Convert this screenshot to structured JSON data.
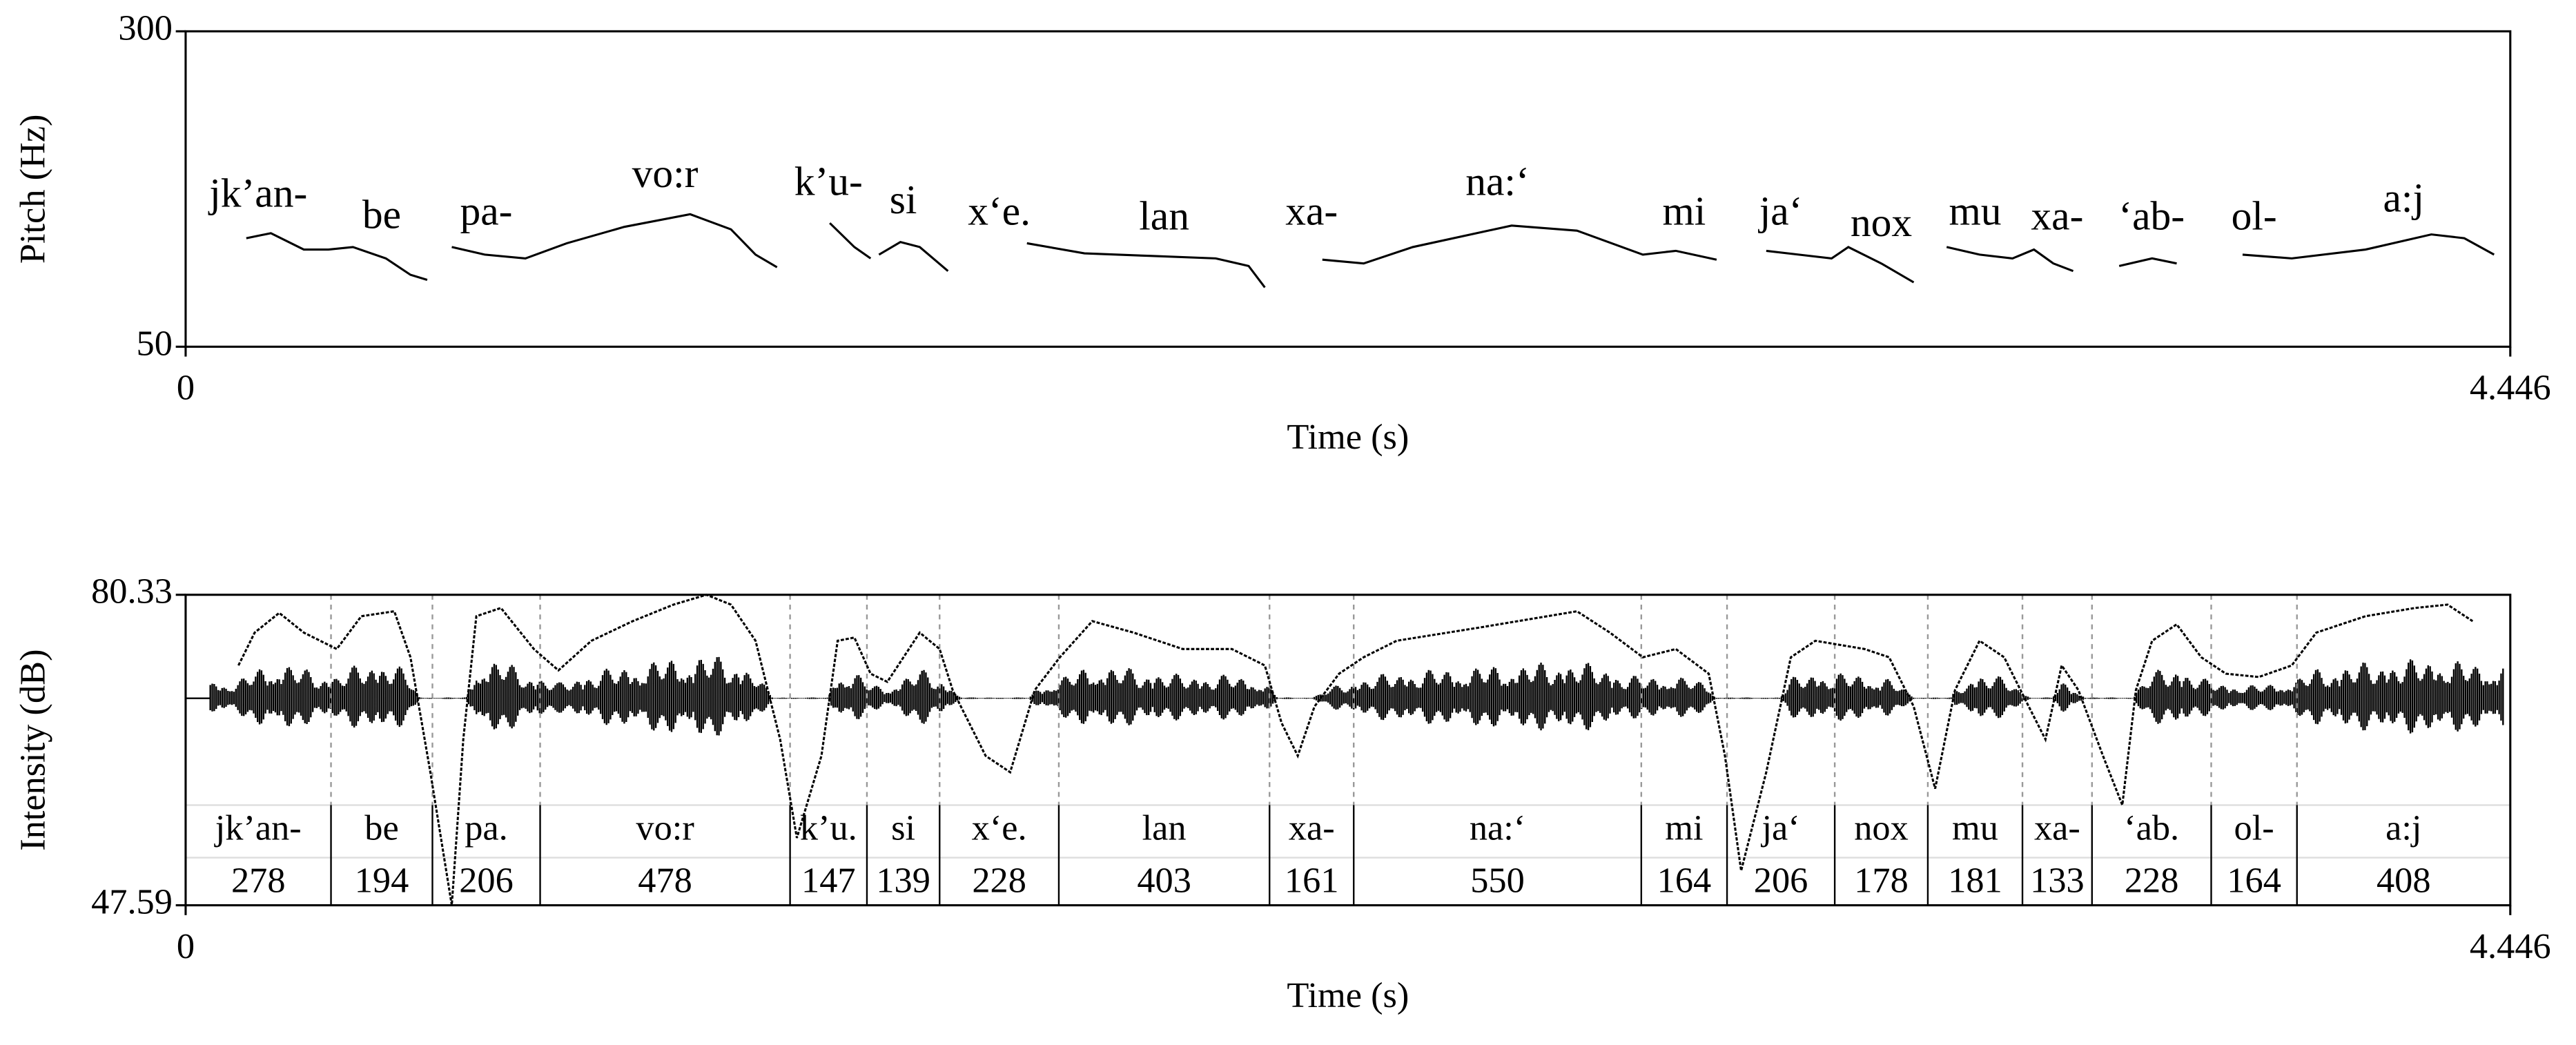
{
  "chart_data": [
    {
      "type": "line",
      "y_label": "Pitch (Hz)",
      "x_label": "Time (s)",
      "xlim": [
        0,
        4.446
      ],
      "xticks": [
        0,
        4.446
      ],
      "ylim": [
        50,
        300
      ],
      "yticks": [
        50,
        300
      ],
      "annotations": [
        "jk’an-",
        "be",
        "pa-",
        "vo:r",
        "k’u-",
        "si",
        "x‘e.",
        "lan",
        "xa-",
        "na:‘",
        "mi",
        "ja‘",
        "nox",
        "mu",
        "xa-",
        "‘ab-",
        "ol-",
        "a:j"
      ],
      "series": [
        {
          "color": "#000000",
          "x": [
            0.116,
            0.163,
            0.226,
            0.273,
            0.32,
            0.383,
            0.43,
            0.462,
            null,
            0.509,
            0.572,
            0.65,
            0.729,
            0.839,
            0.965,
            1.043,
            1.09,
            1.131,
            null,
            1.232,
            1.279,
            1.31,
            null,
            1.326,
            1.367,
            1.404,
            1.458,
            null,
            1.609,
            1.719,
            1.844,
            1.97,
            2.033,
            2.064,
            null,
            2.174,
            2.253,
            2.347,
            2.536,
            2.661,
            2.787,
            2.85,
            2.928,
            null,
            3.023,
            3.085,
            3.148,
            3.18,
            3.243,
            3.305,
            null,
            3.368,
            3.431,
            3.494,
            3.535,
            3.572,
            3.61,
            null,
            3.698,
            3.761,
            3.808,
            null,
            3.934,
            4.028,
            4.169,
            4.295,
            4.358,
            4.415
          ],
          "values": [
            136,
            140,
            127,
            127,
            129,
            120,
            107,
            103,
            null,
            129,
            123,
            120,
            132,
            145,
            155,
            143,
            123,
            113,
            null,
            148,
            129,
            120,
            null,
            123,
            133,
            129,
            110,
            null,
            132,
            124,
            122,
            120,
            114,
            97,
            null,
            119,
            116,
            129,
            146,
            142,
            123,
            126,
            119,
            null,
            126,
            123,
            120,
            129,
            116,
            101,
            null,
            129,
            123,
            120,
            127,
            116,
            110,
            null,
            114,
            120,
            116,
            null,
            123,
            120,
            127,
            139,
            136,
            123
          ]
        }
      ]
    },
    {
      "type": "line",
      "y_label": "Intensity (dB)",
      "x_label": "Time (s)",
      "xlim": [
        0,
        4.446
      ],
      "xticks": [
        0,
        4.446
      ],
      "ylim": [
        47.59,
        80.33
      ],
      "yticks": [
        47.59,
        80.33
      ],
      "series": [
        {
          "color": "#000000",
          "x": [
            0.101,
            0.132,
            0.179,
            0.226,
            0.289,
            0.336,
            0.399,
            0.43,
            0.468,
            0.509,
            0.531,
            0.556,
            0.603,
            0.666,
            0.713,
            0.776,
            0.855,
            0.933,
            0.996,
            1.043,
            1.09,
            1.137,
            1.169,
            1.216,
            1.247,
            1.279,
            1.31,
            1.342,
            1.404,
            1.442,
            1.467,
            1.53,
            1.577,
            1.624,
            1.672,
            1.734,
            1.813,
            1.907,
            2.001,
            2.064,
            2.096,
            2.127,
            2.159,
            2.206,
            2.253,
            2.316,
            2.473,
            2.661,
            2.724,
            2.787,
            2.85,
            2.913,
            2.944,
            2.975,
            3.023,
            3.07,
            3.117,
            3.211,
            3.258,
            3.305,
            3.346,
            3.384,
            3.431,
            3.478,
            3.525,
            3.557,
            3.588,
            3.62,
            3.667,
            3.704,
            3.73,
            3.761,
            3.808,
            3.855,
            3.902,
            3.965,
            4.028,
            4.075,
            4.169,
            4.264,
            4.326,
            4.374
          ],
          "values": [
            72.88,
            76.34,
            78.42,
            76.34,
            74.61,
            78.07,
            78.59,
            73.74,
            61.62,
            47.59,
            65.08,
            78.07,
            78.94,
            74.61,
            72.36,
            75.48,
            77.55,
            79.29,
            80.33,
            79.29,
            75.48,
            65.08,
            54.69,
            63.35,
            75.48,
            75.82,
            72.01,
            71.15,
            76.34,
            74.61,
            70.28,
            63.35,
            61.62,
            70.28,
            73.74,
            77.55,
            76.34,
            74.61,
            74.61,
            72.88,
            66.82,
            63.35,
            68.55,
            72.01,
            73.74,
            75.48,
            76.86,
            78.59,
            76.34,
            73.74,
            74.61,
            72.01,
            63.35,
            51.23,
            61.62,
            73.74,
            75.48,
            74.61,
            73.74,
            68.55,
            59.89,
            70.28,
            75.48,
            73.74,
            68.55,
            65.08,
            72.88,
            70.28,
            63.35,
            58.16,
            70.28,
            75.48,
            77.21,
            73.74,
            72.01,
            71.66,
            72.88,
            76.34,
            78.07,
            78.94,
            79.29,
            77.55
          ]
        }
      ],
      "tier": {
        "labels": [
          "jk’an-",
          "be",
          "pa.",
          "vo:r",
          "k’u.",
          "si",
          "x‘e.",
          "lan",
          "xa-",
          "na:‘",
          "mi",
          "ja‘",
          "nox",
          "mu",
          "xa-",
          "‘ab.",
          "ol-",
          "a:j"
        ],
        "durations": [
          278,
          194,
          206,
          478,
          147,
          139,
          228,
          403,
          161,
          550,
          164,
          206,
          178,
          181,
          133,
          228,
          164,
          408
        ]
      }
    }
  ]
}
